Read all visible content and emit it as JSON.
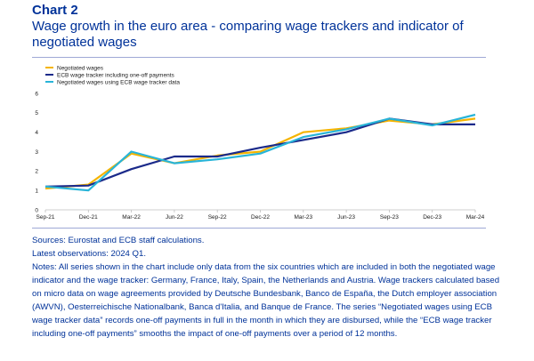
{
  "header": {
    "label": "Chart 2",
    "title": "Wage growth in the euro area - comparing wage trackers and indicator of negotiated wages"
  },
  "colors": {
    "text": "#003299",
    "rule": "#9fa9d6",
    "negotiated": "#f5b400",
    "tracker": "#1b2a8a",
    "tracker_data": "#28b4d8"
  },
  "chart_data": {
    "type": "line",
    "x": [
      "Sep-21",
      "Dec-21",
      "Mar-22",
      "Jun-22",
      "Sep-22",
      "Dec-22",
      "Mar-23",
      "Jun-23",
      "Sep-23",
      "Dec-23",
      "Mar-24"
    ],
    "ylim": [
      0,
      6
    ],
    "yticks": [
      "0",
      "1",
      "2",
      "3",
      "4",
      "5",
      "6"
    ],
    "series": [
      {
        "name": "Negotiated wages",
        "color": "#f5b400",
        "values": [
          1.1,
          1.3,
          2.9,
          2.4,
          2.8,
          3.0,
          4.0,
          4.2,
          4.6,
          4.4,
          4.7
        ]
      },
      {
        "name": "ECB wage tracker including one-off payments",
        "color": "#1b2a8a",
        "values": [
          1.2,
          1.25,
          2.1,
          2.75,
          2.75,
          3.2,
          3.6,
          4.0,
          4.7,
          4.4,
          4.4
        ]
      },
      {
        "name": "Negotiated wages using ECB wage tracker data",
        "color": "#28b4d8",
        "values": [
          1.2,
          1.0,
          3.0,
          2.4,
          2.6,
          2.9,
          3.75,
          4.15,
          4.7,
          4.35,
          4.9
        ]
      }
    ],
    "grid": false,
    "legend": "top-left"
  },
  "notes": {
    "sources": "Sources: Eurostat and ECB staff calculations.",
    "latest": "Latest observations: 2024 Q1.",
    "body": "Notes: All series shown in the chart include only data from the six countries which are included in both the negotiated wage indicator and the wage tracker: Germany, France, Italy, Spain, the Netherlands and Austria. Wage trackers calculated based on micro data on wage agreements provided by Deutsche Bundesbank, Banco de España, the Dutch employer association (AWVN), Oesterreichische Nationalbank, Banca d'Italia, and Banque de France. The series “Negotiated wages using ECB wage tracker data” records one-off payments in full in the month in which they are disbursed, while the “ECB wage tracker including one-off payments” smooths the impact of one-off payments over a period of 12 months."
  }
}
